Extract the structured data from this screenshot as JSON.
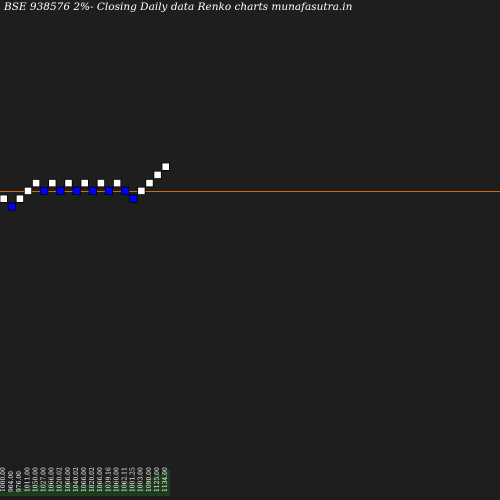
{
  "header": {
    "title": "BSE 938576  2%-  Closing Daily data  Renko  charts munafasutra.in"
  },
  "colors": {
    "background": "#1e1e1e",
    "up_brick": "#ffffff",
    "down_brick": "#0000ff",
    "brick_border": "#000000",
    "last_price_line": "#cc6a1a",
    "volume": "#1e3d1e"
  },
  "chart_data": {
    "type": "renko",
    "brick_size_label": "2%",
    "ref_level": 1134,
    "bricks": [
      {
        "dir": "up",
        "level": 1000
      },
      {
        "dir": "down",
        "level": 980
      },
      {
        "dir": "up",
        "level": 1000
      },
      {
        "dir": "up",
        "level": 1020
      },
      {
        "dir": "up",
        "level": 1040
      },
      {
        "dir": "down",
        "level": 1020
      },
      {
        "dir": "up",
        "level": 1040
      },
      {
        "dir": "down",
        "level": 1020
      },
      {
        "dir": "up",
        "level": 1040
      },
      {
        "dir": "down",
        "level": 1020
      },
      {
        "dir": "up",
        "level": 1040
      },
      {
        "dir": "down",
        "level": 1020
      },
      {
        "dir": "up",
        "level": 1040
      },
      {
        "dir": "down",
        "level": 1020
      },
      {
        "dir": "up",
        "level": 1040
      },
      {
        "dir": "down",
        "level": 1020
      },
      {
        "dir": "down",
        "level": 1000
      },
      {
        "dir": "up",
        "level": 1020
      },
      {
        "dir": "up",
        "level": 1040
      },
      {
        "dir": "up",
        "level": 1061
      },
      {
        "dir": "up",
        "level": 1082
      }
    ],
    "x_labels": [
      "1000.00",
      "964.00",
      "976.00",
      "1011.00",
      "1050.00",
      "1027.00",
      "1066.00",
      "1020.02",
      "1066.00",
      "1040.02",
      "1066.00",
      "1020.02",
      "1066.00",
      "1039.16",
      "1060.00",
      "1062.11",
      "1001.25",
      "1003.00",
      "1090.00",
      "1125.00",
      "1134.00"
    ],
    "volume": [
      3,
      4,
      6,
      8,
      9,
      10,
      9,
      9,
      10,
      8,
      9,
      9,
      10,
      9,
      9,
      11,
      10,
      9,
      14,
      17,
      20
    ]
  }
}
